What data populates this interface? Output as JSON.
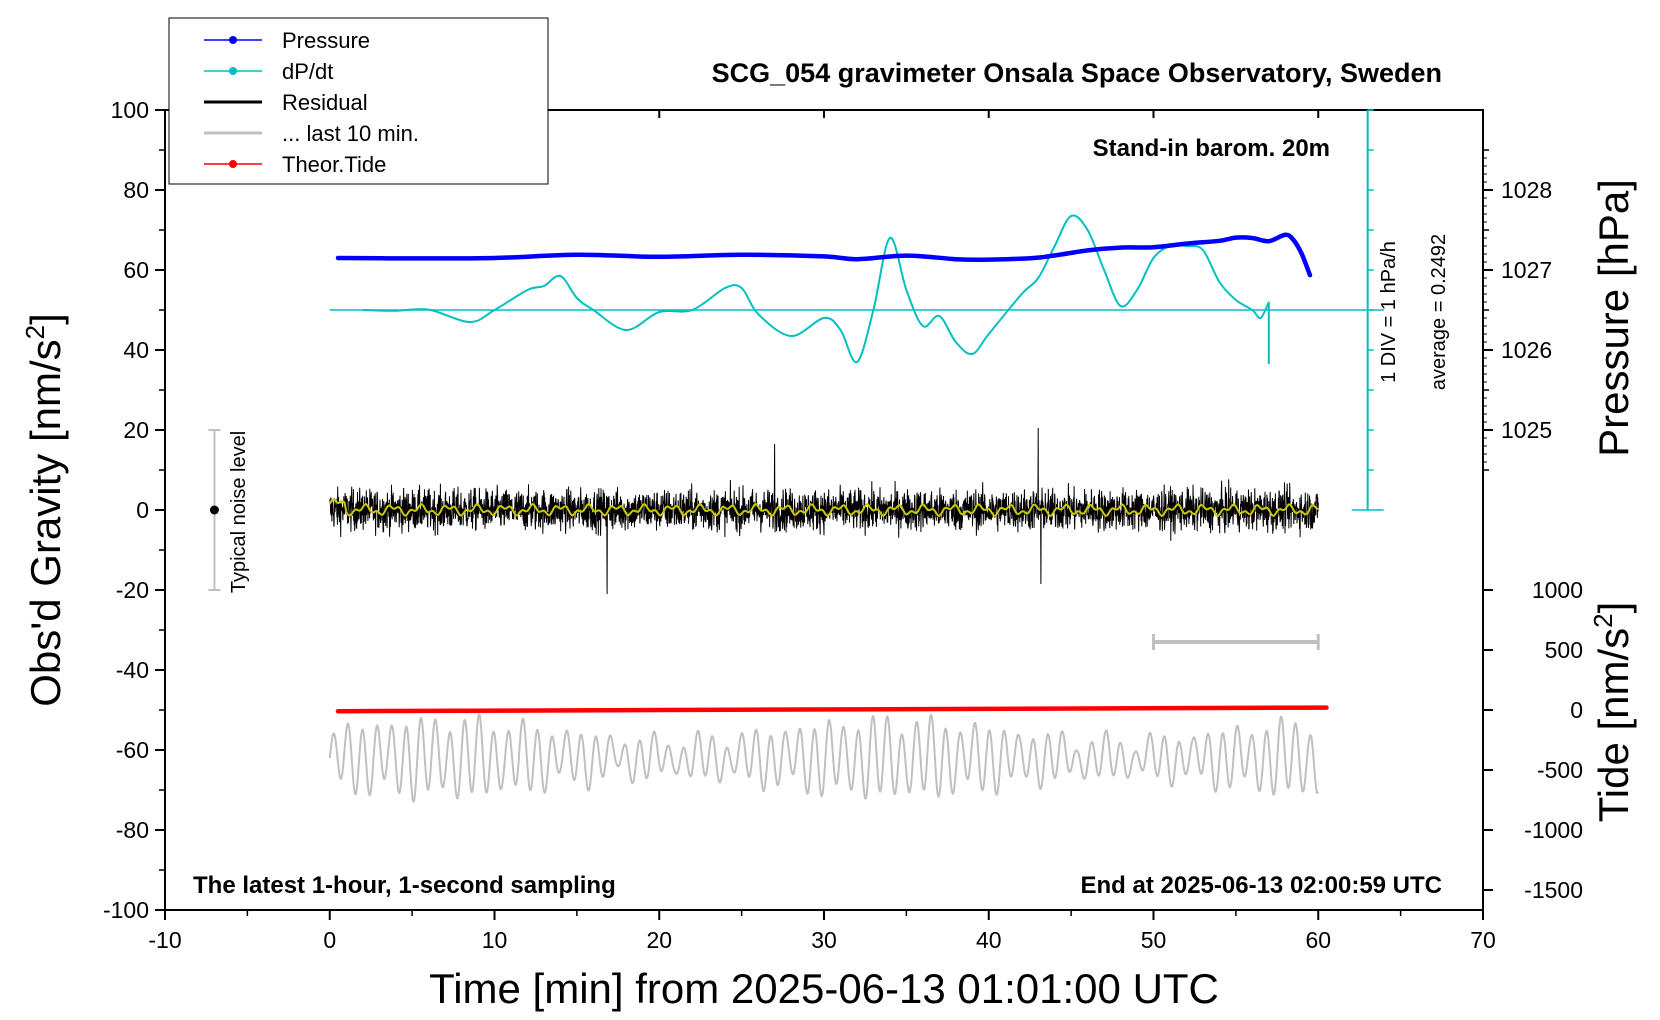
{
  "chart_data": {
    "type": "line",
    "title": "SCG_054 gravimeter Onsala Space Observatory, Sweden",
    "xlabel": "Time [min] from 2025-06-13 01:01:00 UTC",
    "ylabel_left": "Obs'd Gravity [nm/s",
    "ylabel_left_sup": "2",
    "ylabel_left_end": "]",
    "ylabel_right_pressure": "Pressure [hPa]",
    "ylabel_right_tide": "Tide [nm/s",
    "ylabel_right_tide_sup": "2",
    "ylabel_right_tide_end": "]",
    "xlim": [
      -10,
      70
    ],
    "ylim": [
      -100,
      100
    ],
    "x_ticks": [
      "-10",
      "0",
      "10",
      "20",
      "30",
      "40",
      "50",
      "60",
      "70"
    ],
    "y_ticks": [
      "100",
      "80",
      "60",
      "40",
      "20",
      "0",
      "-20",
      "-40",
      "-60",
      "-80",
      "-100"
    ],
    "pressure_axis": {
      "ticks": [
        "1028",
        "1027",
        "1026",
        "1025"
      ],
      "values": [
        1028,
        1027,
        1026,
        1025
      ],
      "ref_value": 1027,
      "ref_gravity": 60,
      "units_per_hpa": 20
    },
    "tide_axis": {
      "ticks": [
        "1000",
        "500",
        "0",
        "-500",
        "-1000",
        "-1500"
      ],
      "values": [
        1000,
        500,
        0,
        -500,
        -1000,
        -1500
      ],
      "ref_value": 0,
      "ref_gravity": -50,
      "units_per_nm": 0.03
    },
    "annotations": {
      "stand_in": "Stand-in barom. 20m",
      "latest": "The latest 1-hour, 1-second sampling",
      "end_at": "End at 2025-06-13 02:00:59 UTC",
      "div_label": "1 DIV = 1 hPa/h",
      "average_label": "average = 0.2492",
      "noise_label": "Typical noise level"
    },
    "legend": [
      {
        "label": "Pressure",
        "color": "#0000ff",
        "marker": true
      },
      {
        "label": "dP/dt",
        "color": "#00c0c0",
        "marker": true
      },
      {
        "label": "Residual",
        "color": "#000000",
        "marker": false
      },
      {
        "label": "... last 10 min.",
        "color": "#c0c0c0",
        "marker": false
      },
      {
        "label": "Theor.Tide",
        "color": "#ff0000",
        "marker": true
      }
    ],
    "series": [
      {
        "name": "Pressure",
        "color": "#0000ff",
        "x": [
          0.5,
          5,
          10,
          15,
          20,
          25,
          30,
          32,
          35,
          38,
          40,
          43,
          46,
          48,
          50,
          52,
          54,
          55,
          56,
          57,
          58,
          58.5,
          59,
          59.5
        ],
        "y": [
          63.0,
          62.9,
          63.0,
          63.8,
          63.3,
          63.8,
          63.4,
          62.7,
          63.6,
          62.7,
          62.6,
          63.1,
          64.9,
          65.6,
          65.7,
          66.6,
          67.3,
          68.1,
          68.0,
          67.2,
          68.8,
          67.5,
          64.0,
          58.7
        ]
      },
      {
        "name": "dP/dt",
        "color": "#00c0c0",
        "x": [
          2,
          4,
          6,
          8.5,
          10,
          12,
          13,
          14,
          15,
          16,
          18,
          20,
          22,
          24,
          25,
          26,
          28,
          30,
          31,
          32,
          33,
          34,
          35,
          36,
          37,
          38,
          39,
          40,
          42,
          43,
          44,
          45,
          46,
          47,
          48,
          49,
          50,
          51,
          52,
          53,
          54,
          55,
          56,
          56.5,
          57
        ],
        "y": [
          50,
          49.8,
          50.1,
          47,
          50,
          55,
          56,
          58.5,
          53,
          50,
          45,
          49.5,
          50,
          55.5,
          55.5,
          49,
          43.5,
          48,
          45,
          37,
          50,
          68,
          55,
          46,
          48.5,
          42,
          39,
          44,
          54,
          58,
          66,
          73.5,
          70,
          60,
          51,
          55,
          63,
          66,
          66,
          65,
          57,
          52.5,
          50,
          48,
          52
        ],
        "y_end": 36.5
      },
      {
        "name": "Residual",
        "color": "#000000",
        "x_range": [
          0,
          60
        ],
        "mean": 0,
        "amplitude": 7,
        "max": 20.5,
        "min": -21
      },
      {
        "name": "Residual (smoothed)",
        "color": "#c8c800",
        "x_range": [
          0,
          60
        ],
        "mean": 0,
        "amplitude": 1.5
      },
      {
        "name": "... last 10 min.",
        "color": "#c0c0c0",
        "x_range": [
          0,
          60
        ],
        "mean": -62,
        "amplitude": 7,
        "max": -47.5,
        "min": -77.5
      },
      {
        "name": "Theor.Tide",
        "color": "#ff0000",
        "x": [
          0.5,
          60.5
        ],
        "y": [
          -50.3,
          -49.4
        ]
      }
    ],
    "dpdt_baseline": 50,
    "dpdt_scale": {
      "x": 63,
      "y_top": 100,
      "y_bottom": 0,
      "div_values": [
        0,
        10,
        20,
        30,
        40,
        50,
        60,
        70,
        80,
        90,
        100
      ]
    },
    "noise_bar": {
      "x": -7,
      "y": 0,
      "low": -20,
      "high": 20
    },
    "gray_bar": {
      "x_start": 50,
      "x_end": 60,
      "y": -33
    }
  }
}
